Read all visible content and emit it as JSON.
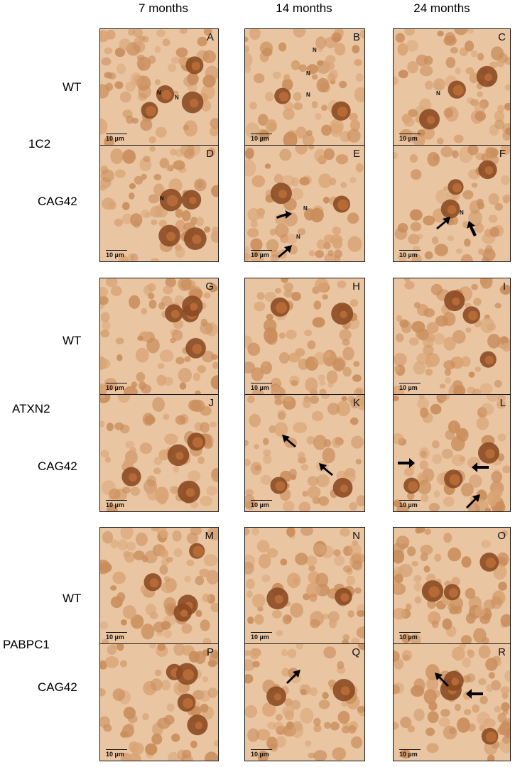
{
  "columns": [
    "7 months",
    "14 months",
    "24 months"
  ],
  "groups": [
    {
      "stain": "1C2",
      "rows": [
        "WT",
        "CAG42"
      ]
    },
    {
      "stain": "ATXN2",
      "rows": [
        "WT",
        "CAG42"
      ]
    },
    {
      "stain": "PABPC1",
      "rows": [
        "WT",
        "CAG42"
      ]
    }
  ],
  "panels": [
    {
      "letter": "A",
      "scale": "10 µm",
      "nuclei": [
        "N",
        "N"
      ]
    },
    {
      "letter": "B",
      "scale": "10 µm",
      "nuclei": [
        "N",
        "N",
        "N"
      ]
    },
    {
      "letter": "C",
      "scale": "10 µm",
      "nuclei": [
        "N"
      ]
    },
    {
      "letter": "D",
      "scale": "10 µm",
      "nuclei": [
        "N"
      ]
    },
    {
      "letter": "E",
      "scale": "10 µm",
      "nuclei": [
        "N",
        "N"
      ]
    },
    {
      "letter": "F",
      "scale": "10 µm",
      "nuclei": [
        "N"
      ]
    },
    {
      "letter": "G",
      "scale": "10 µm",
      "nuclei": []
    },
    {
      "letter": "H",
      "scale": "10 µm",
      "nuclei": []
    },
    {
      "letter": "I",
      "scale": "10 µm",
      "nuclei": []
    },
    {
      "letter": "J",
      "scale": "10 µm",
      "nuclei": []
    },
    {
      "letter": "K",
      "scale": "10 µm",
      "nuclei": []
    },
    {
      "letter": "L",
      "scale": "10 µm",
      "nuclei": []
    },
    {
      "letter": "M",
      "scale": "10 µm",
      "nuclei": []
    },
    {
      "letter": "N",
      "scale": "10 µm",
      "nuclei": []
    },
    {
      "letter": "O",
      "scale": "10 µm",
      "nuclei": []
    },
    {
      "letter": "P",
      "scale": "10 µm",
      "nuclei": []
    },
    {
      "letter": "Q",
      "scale": "10 µm",
      "nuclei": []
    },
    {
      "letter": "R",
      "scale": "10 µm",
      "nuclei": []
    }
  ],
  "colors": {
    "background": "#e9c5a2",
    "stain_light": "#d9a475",
    "stain_dark": "#8c4a22"
  }
}
